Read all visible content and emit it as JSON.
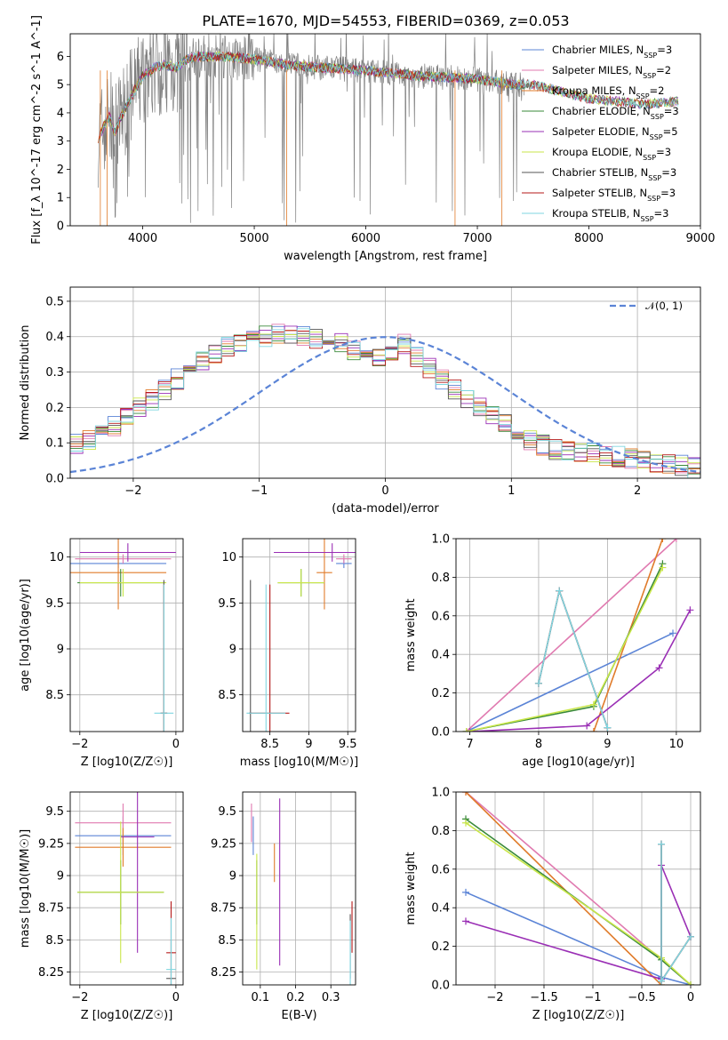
{
  "figure_title": "PLATE=1670, MJD=54553, FIBERID=0369, z=0.053",
  "colors": {
    "Chabrier MILES": "#5b84d6",
    "Salpeter MILES": "#e07ab0",
    "Kroupa MILES": "#e07b2a",
    "Chabrier ELODIE": "#3a8a3a",
    "Salpeter ELODIE": "#9a2fb5",
    "Kroupa ELODIE": "#c9e64a",
    "Chabrier STELIB": "#555555",
    "Salpeter STELIB": "#b51a1a",
    "Kroupa STELIB": "#7fd6e0",
    "data": "#808080"
  },
  "chart_data": [
    {
      "id": "spectrum",
      "type": "line",
      "xlabel": "wavelength [Angstrom, rest frame]",
      "ylabel": "Flux [f_λ 10^-17 erg cm^-2 s^-1 A^-1]",
      "xlim": [
        3350,
        9000
      ],
      "ylim": [
        0,
        6.8
      ],
      "xticks": [
        4000,
        5000,
        6000,
        7000,
        8000,
        9000
      ],
      "yticks": [
        0,
        1,
        2,
        3,
        4,
        5,
        6
      ],
      "legend": "top-right",
      "continuum": {
        "x": [
          3600,
          3650,
          3700,
          3750,
          3800,
          3900,
          4000,
          4100,
          4200,
          4300,
          4400,
          4500,
          4700,
          5000,
          5300,
          5600,
          6000,
          6500,
          7000,
          7300,
          7500,
          8000,
          8500,
          8800
        ],
        "y": [
          3.1,
          3.5,
          3.9,
          3.3,
          3.8,
          4.6,
          5.3,
          5.6,
          5.7,
          5.6,
          5.9,
          6.0,
          6.0,
          5.9,
          5.7,
          5.6,
          5.5,
          5.3,
          5.2,
          5.0,
          5.0,
          4.5,
          4.3,
          4.4
        ]
      },
      "series": [
        {
          "name": "Chabrier MILES",
          "nssp": "=3"
        },
        {
          "name": "Salpeter MILES",
          "nssp": "=2"
        },
        {
          "name": "Kroupa MILES",
          "nssp": "=2"
        },
        {
          "name": "Chabrier ELODIE",
          "nssp": "=3"
        },
        {
          "name": "Salpeter ELODIE",
          "nssp": "=5"
        },
        {
          "name": "Kroupa ELODIE",
          "nssp": "=3"
        },
        {
          "name": "Chabrier STELIB",
          "nssp": "=3"
        },
        {
          "name": "Salpeter STELIB",
          "nssp": "=3"
        },
        {
          "name": "Kroupa STELIB",
          "nssp": "=3"
        }
      ]
    },
    {
      "id": "residuals",
      "type": "line",
      "xlabel": "(data-model)/error",
      "ylabel": "Normed distribution",
      "xlim": [
        -2.5,
        2.5
      ],
      "ylim": [
        0,
        0.54
      ],
      "xticks": [
        -2,
        -1,
        0,
        1,
        2
      ],
      "yticks": [
        0.0,
        0.1,
        0.2,
        0.3,
        0.4,
        0.5
      ],
      "legend_label": "𝒩(0, 1)",
      "legend": "top-right",
      "bin_width": 0.1,
      "base": [
        0.02,
        0.025,
        0.03,
        0.035,
        0.04,
        0.045,
        0.05,
        0.06,
        0.07,
        0.08,
        0.095,
        0.11,
        0.13,
        0.15,
        0.17,
        0.2,
        0.22,
        0.25,
        0.28,
        0.31,
        0.33,
        0.35,
        0.37,
        0.38,
        0.39,
        0.4,
        0.41,
        0.41,
        0.4,
        0.395,
        0.39,
        0.38,
        0.36,
        0.35,
        0.34,
        0.36,
        0.38,
        0.34,
        0.31,
        0.28,
        0.25,
        0.22,
        0.2,
        0.18,
        0.15,
        0.13,
        0.11,
        0.095,
        0.08,
        0.075,
        0.07,
        0.07,
        0.065,
        0.06,
        0.055,
        0.05,
        0.045,
        0.04,
        0.035,
        0.03,
        0.03,
        0.025,
        0.025,
        0.02,
        0.02,
        0.015,
        0.015,
        0.01,
        0.01,
        0.01
      ]
    },
    {
      "id": "age-vs-Z",
      "type": "scatter",
      "xlabel": "Z [log10(Z/Z☉)]",
      "ylabel": "age  [log10(age/yr)]",
      "xlim": [
        -2.2,
        0.15
      ],
      "ylim": [
        8.1,
        10.2
      ],
      "xticks": [
        -2,
        0
      ],
      "yticks": [
        8.5,
        9.0,
        9.5,
        10.0
      ],
      "points": [
        {
          "s": "Chabrier MILES",
          "x": -1.2,
          "y": 9.93,
          "xe": 1.0,
          "ye": 0.05
        },
        {
          "s": "Salpeter MILES",
          "x": -1.1,
          "y": 9.98,
          "xe": 1.0,
          "ye": 0.05
        },
        {
          "s": "Kroupa MILES",
          "x": -1.2,
          "y": 9.83,
          "xe": 1.0,
          "ye": 0.4
        },
        {
          "s": "Chabrier ELODIE",
          "x": -1.15,
          "y": 9.72,
          "xe": 0.9,
          "ye": 0.15
        },
        {
          "s": "Salpeter ELODIE",
          "x": -1.0,
          "y": 10.05,
          "xe": 1.0,
          "ye": 0.1
        },
        {
          "s": "Kroupa ELODIE",
          "x": -1.1,
          "y": 9.72,
          "xe": 0.9,
          "ye": 0.15
        },
        {
          "s": "Chabrier STELIB",
          "x": -0.25,
          "y": 8.3,
          "xe": 0.07,
          "ye": 1.45
        },
        {
          "s": "Salpeter STELIB",
          "x": -0.25,
          "y": 8.3,
          "xe": 0.07,
          "ye": 1.4
        },
        {
          "s": "Kroupa STELIB",
          "x": -0.25,
          "y": 8.3,
          "xe": 0.2,
          "ye": 1.4
        }
      ]
    },
    {
      "id": "age-vs-mass",
      "type": "scatter",
      "xlabel": "mass [log10(M/M☉)]",
      "ylabel": "",
      "xlim": [
        8.15,
        9.6
      ],
      "ylim": [
        8.1,
        10.2
      ],
      "xticks": [
        8.5,
        9.0,
        9.5
      ],
      "yticks": [
        8.5,
        9.0,
        9.5,
        10.0
      ],
      "points": [
        {
          "s": "Chabrier MILES",
          "x": 9.45,
          "y": 9.93,
          "xe": 0.1,
          "ye": 0.05
        },
        {
          "s": "Salpeter MILES",
          "x": 9.45,
          "y": 9.98,
          "xe": 0.1,
          "ye": 0.05
        },
        {
          "s": "Kroupa MILES",
          "x": 9.2,
          "y": 9.83,
          "xe": 0.1,
          "ye": 0.4
        },
        {
          "s": "Chabrier ELODIE",
          "x": 8.9,
          "y": 9.72,
          "xe": 0.3,
          "ye": 0.15
        },
        {
          "s": "Salpeter ELODIE",
          "x": 9.3,
          "y": 10.05,
          "xe": 0.75,
          "ye": 0.1
        },
        {
          "s": "Kroupa ELODIE",
          "x": 8.9,
          "y": 9.72,
          "xe": 0.3,
          "ye": 0.15
        },
        {
          "s": "Chabrier STELIB",
          "x": 8.25,
          "y": 8.3,
          "xe": 0.02,
          "ye": 1.45
        },
        {
          "s": "Salpeter STELIB",
          "x": 8.5,
          "y": 8.3,
          "xe": 0.25,
          "ye": 1.4
        },
        {
          "s": "Kroupa STELIB",
          "x": 8.45,
          "y": 8.3,
          "xe": 0.25,
          "ye": 1.4
        }
      ]
    },
    {
      "id": "massweight-vs-age",
      "type": "line",
      "xlabel": "age  [log10(age/yr)]",
      "ylabel": "mass weight",
      "xlim": [
        6.8,
        10.35
      ],
      "ylim": [
        0,
        1.0
      ],
      "xticks": [
        7,
        8,
        9,
        10
      ],
      "yticks": [
        0.0,
        0.2,
        0.4,
        0.6,
        0.8,
        1.0
      ],
      "series": [
        {
          "s": "Chabrier MILES",
          "x": [
            6.95,
            9.95
          ],
          "y": [
            0.0,
            0.51
          ]
        },
        {
          "s": "Salpeter MILES",
          "x": [
            6.95,
            10.0
          ],
          "y": [
            0.0,
            1.0
          ]
        },
        {
          "s": "Kroupa MILES",
          "x": [
            8.8,
            9.8
          ],
          "y": [
            0.0,
            1.0
          ]
        },
        {
          "s": "Chabrier ELODIE",
          "x": [
            6.95,
            8.8,
            9.8
          ],
          "y": [
            0.0,
            0.13,
            0.87
          ]
        },
        {
          "s": "Salpeter ELODIE",
          "x": [
            7.0,
            8.7,
            9.75,
            10.2
          ],
          "y": [
            0.0,
            0.03,
            0.33,
            0.63
          ]
        },
        {
          "s": "Kroupa ELODIE",
          "x": [
            6.95,
            8.8,
            9.8
          ],
          "y": [
            0.0,
            0.14,
            0.85
          ]
        },
        {
          "s": "Chabrier STELIB",
          "x": [
            8.0,
            8.3,
            9.0
          ],
          "y": [
            0.25,
            0.73,
            0.02
          ]
        },
        {
          "s": "Salpeter STELIB",
          "x": [
            8.0,
            8.3,
            9.0
          ],
          "y": [
            0.25,
            0.73,
            0.02
          ]
        },
        {
          "s": "Kroupa STELIB",
          "x": [
            8.0,
            8.3,
            9.0
          ],
          "y": [
            0.25,
            0.73,
            0.02
          ]
        }
      ]
    },
    {
      "id": "mass-vs-Z",
      "type": "scatter",
      "xlabel": "Z [log10(Z/Z☉)]",
      "ylabel": "mass [log10(M/M☉)]",
      "xlim": [
        -2.2,
        0.15
      ],
      "ylim": [
        8.15,
        9.65
      ],
      "xticks": [
        -2,
        0
      ],
      "yticks": [
        8.25,
        8.5,
        8.75,
        9.0,
        9.25,
        9.5
      ],
      "points": [
        {
          "s": "Chabrier MILES",
          "x": -1.1,
          "y": 9.31,
          "xe": 1.0,
          "ye": 0.15
        },
        {
          "s": "Salpeter MILES",
          "x": -1.1,
          "y": 9.41,
          "xe": 1.0,
          "ye": 0.15
        },
        {
          "s": "Kroupa MILES",
          "x": -1.1,
          "y": 9.22,
          "xe": 1.0,
          "ye": 0.15
        },
        {
          "s": "Chabrier ELODIE",
          "x": -1.15,
          "y": 8.87,
          "xe": 0.9,
          "ye": 0.25
        },
        {
          "s": "Salpeter ELODIE",
          "x": -0.8,
          "y": 9.3,
          "xe": 0.35,
          "ye": 0.9
        },
        {
          "s": "Kroupa ELODIE",
          "x": -1.15,
          "y": 8.87,
          "xe": 0.9,
          "ye": 0.55
        },
        {
          "s": "Chabrier STELIB",
          "x": -0.1,
          "y": 8.2,
          "xe": 0.1,
          "ye": 0.3
        },
        {
          "s": "Salpeter STELIB",
          "x": -0.1,
          "y": 8.4,
          "xe": 0.1,
          "ye": 0.4
        },
        {
          "s": "Kroupa STELIB",
          "x": -0.1,
          "y": 8.27,
          "xe": 0.1,
          "ye": 0.4
        }
      ]
    },
    {
      "id": "mass-vs-ebv",
      "type": "scatter",
      "xlabel": "E(B-V)",
      "ylabel": "",
      "xlim": [
        0.05,
        0.37
      ],
      "ylim": [
        8.15,
        9.65
      ],
      "xticks": [
        0.1,
        0.2,
        0.3
      ],
      "yticks": [
        8.25,
        8.5,
        8.75,
        9.0,
        9.25,
        9.5
      ],
      "points": [
        {
          "s": "Chabrier MILES",
          "x": 0.08,
          "y": 9.31,
          "xe": 0,
          "ye": 0.15
        },
        {
          "s": "Salpeter MILES",
          "x": 0.075,
          "y": 9.41,
          "xe": 0,
          "ye": 0.15
        },
        {
          "s": "Kroupa MILES",
          "x": 0.14,
          "y": 9.1,
          "xe": 0,
          "ye": 0.15
        },
        {
          "s": "Chabrier ELODIE",
          "x": 0.09,
          "y": 8.87,
          "xe": 0,
          "ye": 0.25
        },
        {
          "s": "Salpeter ELODIE",
          "x": 0.155,
          "y": 8.95,
          "xe": 0,
          "ye": 0.65
        },
        {
          "s": "Kroupa ELODIE",
          "x": 0.09,
          "y": 8.72,
          "xe": 0,
          "ye": 0.45
        },
        {
          "s": "Chabrier STELIB",
          "x": 0.355,
          "y": 8.45,
          "xe": 0,
          "ye": 0.25
        },
        {
          "s": "Salpeter STELIB",
          "x": 0.36,
          "y": 8.6,
          "xe": 0,
          "ye": 0.2
        },
        {
          "s": "Kroupa STELIB",
          "x": 0.355,
          "y": 8.4,
          "xe": 0,
          "ye": 0.25
        }
      ]
    },
    {
      "id": "massweight-vs-Z",
      "type": "line",
      "xlabel": "Z [log10(Z/Z☉)]",
      "ylabel": "mass weight",
      "xlim": [
        -2.4,
        0.1
      ],
      "ylim": [
        0,
        1.0
      ],
      "xticks": [
        -2.0,
        -1.5,
        -1.0,
        -0.5,
        0.0
      ],
      "yticks": [
        0.0,
        0.2,
        0.4,
        0.6,
        0.8,
        1.0
      ],
      "series": [
        {
          "s": "Chabrier MILES",
          "x": [
            -2.3,
            -0.3,
            0.0
          ],
          "y": [
            0.48,
            0.04,
            0.0
          ]
        },
        {
          "s": "Salpeter MILES",
          "x": [
            -2.3,
            0.0
          ],
          "y": [
            1.0,
            0.0
          ]
        },
        {
          "s": "Kroupa MILES",
          "x": [
            -2.3,
            -0.3
          ],
          "y": [
            1.0,
            0.0
          ]
        },
        {
          "s": "Chabrier ELODIE",
          "x": [
            -2.3,
            -0.3,
            0.0
          ],
          "y": [
            0.86,
            0.13,
            0.0
          ]
        },
        {
          "s": "Salpeter ELODIE",
          "x": [
            -2.3,
            -0.3,
            -0.3,
            0.0
          ],
          "y": [
            0.33,
            0.03,
            0.62,
            0.25
          ]
        },
        {
          "s": "Kroupa ELODIE",
          "x": [
            -2.3,
            -0.3,
            0.0
          ],
          "y": [
            0.84,
            0.14,
            0.0
          ]
        },
        {
          "s": "Chabrier STELIB",
          "x": [
            -0.3,
            -0.3,
            0.0
          ],
          "y": [
            0.73,
            0.02,
            0.25
          ]
        },
        {
          "s": "Salpeter STELIB",
          "x": [
            -0.3,
            -0.3,
            0.0
          ],
          "y": [
            0.73,
            0.02,
            0.25
          ]
        },
        {
          "s": "Kroupa STELIB",
          "x": [
            -0.3,
            -0.3,
            0.0
          ],
          "y": [
            0.73,
            0.02,
            0.25
          ]
        }
      ]
    }
  ]
}
